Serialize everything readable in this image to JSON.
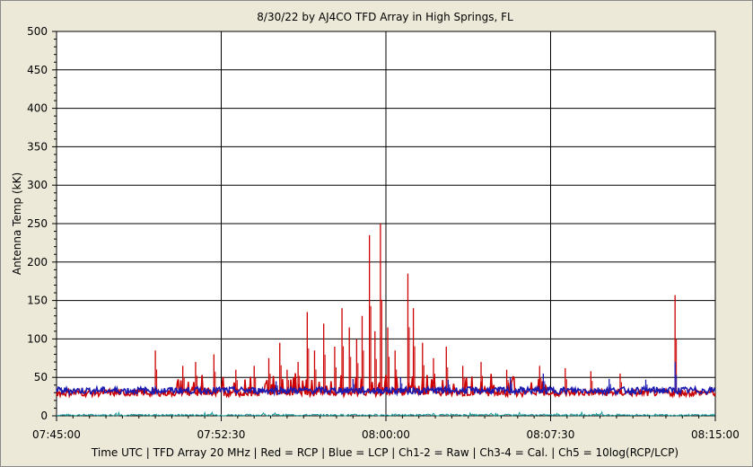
{
  "chart_data": {
    "type": "line",
    "title": "8/30/22  by  AJ4CO TFD Array  in  High Springs, FL",
    "ylabel": "Antenna Temp (kK)",
    "xlabel": "Time UTC | TFD Array 20 MHz | Red = RCP | Blue = LCP | Ch1-2 = Raw | Ch3-4 = Cal. | Ch5 = 10log(RCP/LCP)",
    "ylim": [
      0,
      500
    ],
    "y_ticks": [
      "0",
      "50",
      "100",
      "150",
      "200",
      "250",
      "300",
      "350",
      "400",
      "450",
      "500"
    ],
    "x_ticks": [
      "07:45:00",
      "07:52:30",
      "08:00:00",
      "08:07:30",
      "08:15:00"
    ],
    "grid": true,
    "series": [
      {
        "name": "RCP",
        "color": "#cc0000",
        "baseline": 30,
        "spikes": [
          {
            "t": "07:49:30",
            "v": 85
          },
          {
            "t": "07:50:45",
            "v": 65
          },
          {
            "t": "07:51:20",
            "v": 70
          },
          {
            "t": "07:52:10",
            "v": 80
          },
          {
            "t": "07:53:10",
            "v": 60
          },
          {
            "t": "07:54:00",
            "v": 65
          },
          {
            "t": "07:54:40",
            "v": 75
          },
          {
            "t": "07:55:10",
            "v": 95
          },
          {
            "t": "07:55:30",
            "v": 60
          },
          {
            "t": "07:56:00",
            "v": 70
          },
          {
            "t": "07:56:25",
            "v": 135
          },
          {
            "t": "07:56:45",
            "v": 85
          },
          {
            "t": "07:57:10",
            "v": 120
          },
          {
            "t": "07:57:40",
            "v": 90
          },
          {
            "t": "07:58:00",
            "v": 140
          },
          {
            "t": "07:58:20",
            "v": 115
          },
          {
            "t": "07:58:40",
            "v": 100
          },
          {
            "t": "07:58:55",
            "v": 130
          },
          {
            "t": "07:59:15",
            "v": 235
          },
          {
            "t": "07:59:30",
            "v": 110
          },
          {
            "t": "07:59:45",
            "v": 250
          },
          {
            "t": "08:00:05",
            "v": 115
          },
          {
            "t": "08:00:25",
            "v": 85
          },
          {
            "t": "08:01:00",
            "v": 185
          },
          {
            "t": "08:01:15",
            "v": 140
          },
          {
            "t": "08:01:40",
            "v": 95
          },
          {
            "t": "08:02:10",
            "v": 75
          },
          {
            "t": "08:02:45",
            "v": 90
          },
          {
            "t": "08:03:30",
            "v": 65
          },
          {
            "t": "08:04:20",
            "v": 70
          },
          {
            "t": "08:05:30",
            "v": 60
          },
          {
            "t": "08:07:00",
            "v": 65
          },
          {
            "t": "08:08:10",
            "v": 62
          },
          {
            "t": "08:09:20",
            "v": 58
          },
          {
            "t": "08:10:40",
            "v": 55
          },
          {
            "t": "08:13:10",
            "v": 157
          }
        ]
      },
      {
        "name": "LCP",
        "color": "#1a1ab0",
        "baseline": 33,
        "spikes": [
          {
            "t": "07:55:00",
            "v": 45
          },
          {
            "t": "07:58:30",
            "v": 48
          },
          {
            "t": "08:00:40",
            "v": 50
          },
          {
            "t": "08:02:50",
            "v": 47
          },
          {
            "t": "08:05:40",
            "v": 50
          },
          {
            "t": "08:07:10",
            "v": 55
          },
          {
            "t": "08:10:10",
            "v": 48
          },
          {
            "t": "08:11:50",
            "v": 47
          },
          {
            "t": "08:13:10",
            "v": 70
          }
        ]
      },
      {
        "name": "Ch5",
        "color": "#1a9a9a",
        "baseline": 1
      }
    ]
  }
}
